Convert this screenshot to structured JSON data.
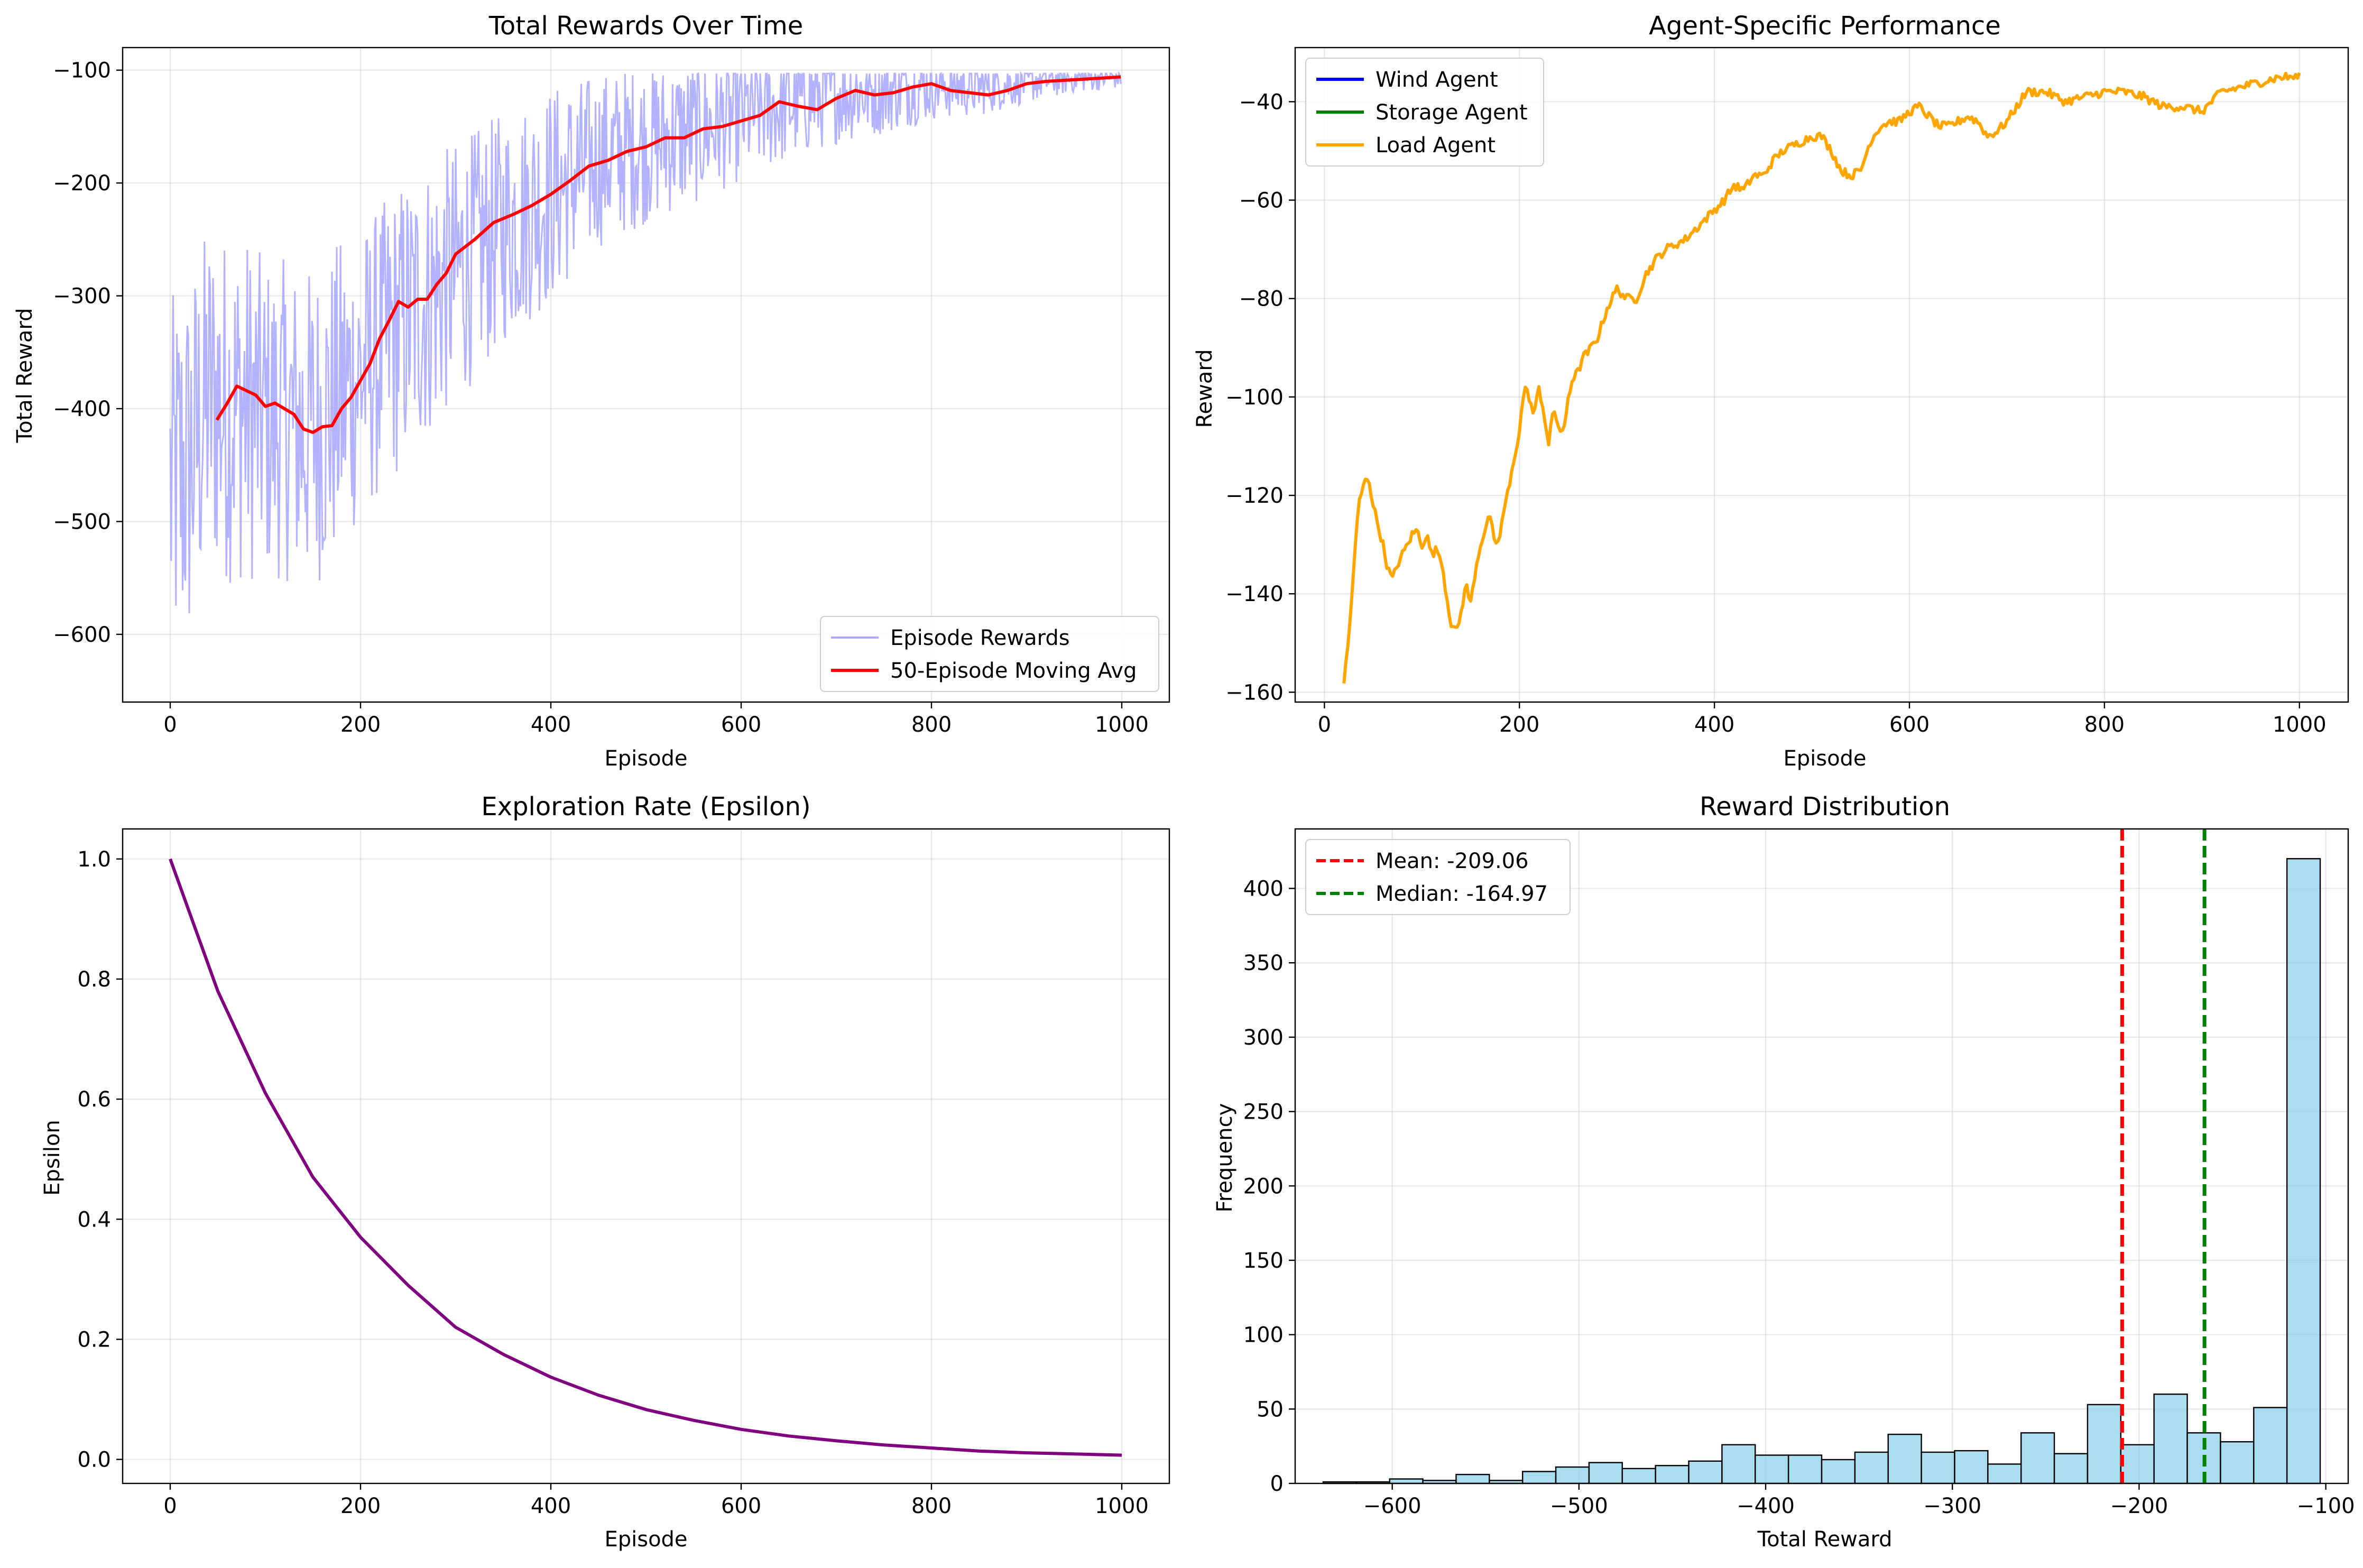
{
  "chart_data": [
    {
      "type": "line",
      "title": "Total Rewards Over Time",
      "xlabel": "Episode",
      "ylabel": "Total Reward",
      "xlim": [
        -50,
        1050
      ],
      "ylim": [
        -660,
        -80
      ],
      "xticks": [
        0,
        200,
        400,
        600,
        800,
        1000
      ],
      "yticks": [
        -600,
        -500,
        -400,
        -300,
        -200,
        -100
      ],
      "grid": true,
      "legend_position": "lower right",
      "series": [
        {
          "name": "Episode Rewards",
          "color": "#aaaaff",
          "style": "noisy",
          "x": [
            0,
            20,
            40,
            60,
            80,
            100,
            120,
            140,
            160,
            180,
            200,
            250,
            300,
            350,
            400,
            450,
            500,
            550,
            600,
            650,
            700,
            750,
            800,
            850,
            900,
            950,
            999
          ],
          "y": [
            -470,
            -450,
            -390,
            -400,
            -400,
            -410,
            -410,
            -420,
            -410,
            -390,
            -370,
            -320,
            -280,
            -240,
            -210,
            -180,
            -165,
            -155,
            -140,
            -130,
            -120,
            -118,
            -112,
            -115,
            -110,
            -107,
            -106
          ],
          "noise": [
            130,
            130,
            120,
            120,
            120,
            110,
            110,
            110,
            110,
            110,
            100,
            100,
            90,
            80,
            75,
            60,
            55,
            50,
            45,
            40,
            35,
            30,
            25,
            20,
            15,
            10,
            8
          ],
          "min": -637,
          "max": -103
        },
        {
          "name": "50-Episode Moving Avg",
          "color": "#ff0000",
          "x": [
            49,
            60,
            70,
            90,
            100,
            110,
            120,
            130,
            140,
            150,
            160,
            170,
            180,
            190,
            200,
            210,
            220,
            230,
            240,
            250,
            260,
            270,
            280,
            290,
            300,
            320,
            340,
            360,
            380,
            400,
            420,
            440,
            460,
            480,
            500,
            520,
            540,
            560,
            580,
            600,
            620,
            640,
            660,
            680,
            700,
            720,
            740,
            760,
            780,
            800,
            820,
            840,
            860,
            880,
            900,
            920,
            940,
            960,
            980,
            999
          ],
          "y": [
            -410,
            -395,
            -380,
            -388,
            -398,
            -395,
            -400,
            -405,
            -418,
            -421,
            -416,
            -415,
            -400,
            -390,
            -375,
            -360,
            -338,
            -322,
            -305,
            -310,
            -303,
            -303,
            -290,
            -280,
            -263,
            -250,
            -235,
            -228,
            -220,
            -210,
            -198,
            -185,
            -180,
            -172,
            -168,
            -160,
            -160,
            -152,
            -150,
            -145,
            -140,
            -128,
            -132,
            -135,
            -125,
            -118,
            -122,
            -120,
            -115,
            -112,
            -118,
            -120,
            -122,
            -118,
            -112,
            -110,
            -109,
            -108,
            -107,
            -106
          ]
        }
      ]
    },
    {
      "type": "line",
      "title": "Agent-Specific Performance",
      "xlabel": "Episode",
      "ylabel": "Reward",
      "xlim": [
        -30,
        1050
      ],
      "ylim": [
        -162,
        -29
      ],
      "xticks": [
        0,
        200,
        400,
        600,
        800,
        1000
      ],
      "yticks": [
        -160,
        -140,
        -120,
        -100,
        -80,
        -60,
        -40
      ],
      "grid": true,
      "legend_position": "upper left",
      "series": [
        {
          "name": "Wind Agent",
          "color": "#0000ff",
          "x": [],
          "y": []
        },
        {
          "name": "Storage Agent",
          "color": "#008000",
          "x": [],
          "y": []
        },
        {
          "name": "Load Agent",
          "color": "#ffa500",
          "x": [
            20,
            25,
            30,
            35,
            40,
            45,
            50,
            55,
            60,
            65,
            70,
            75,
            80,
            85,
            90,
            95,
            100,
            105,
            110,
            115,
            120,
            125,
            130,
            135,
            140,
            145,
            150,
            155,
            160,
            165,
            170,
            175,
            180,
            185,
            190,
            195,
            200,
            205,
            210,
            215,
            220,
            225,
            230,
            235,
            240,
            245,
            250,
            255,
            260,
            265,
            270,
            280,
            290,
            300,
            310,
            320,
            330,
            340,
            350,
            360,
            370,
            380,
            390,
            400,
            410,
            420,
            430,
            440,
            450,
            460,
            470,
            480,
            490,
            500,
            510,
            520,
            530,
            540,
            550,
            560,
            570,
            580,
            590,
            600,
            610,
            620,
            630,
            640,
            650,
            660,
            670,
            680,
            690,
            700,
            720,
            740,
            760,
            780,
            800,
            820,
            840,
            860,
            880,
            900,
            920,
            940,
            960,
            980,
            1000
          ],
          "y": [
            -158,
            -149,
            -135,
            -122,
            -118,
            -116,
            -122,
            -126,
            -130,
            -135,
            -137,
            -134,
            -132,
            -130,
            -128,
            -127,
            -130,
            -128,
            -132,
            -131,
            -133,
            -140,
            -146,
            -148,
            -144,
            -138,
            -142,
            -135,
            -130,
            -127,
            -124,
            -131,
            -128,
            -122,
            -118,
            -112,
            -107,
            -98,
            -100,
            -104,
            -98,
            -103,
            -110,
            -102,
            -106,
            -108,
            -100,
            -96,
            -95,
            -92,
            -91,
            -88,
            -82,
            -78,
            -80,
            -80,
            -75,
            -72,
            -70,
            -69,
            -68,
            -66,
            -64,
            -62,
            -60,
            -57,
            -58,
            -55,
            -55,
            -52,
            -50,
            -49,
            -48,
            -47,
            -47,
            -50,
            -54,
            -55,
            -54,
            -48,
            -45,
            -44,
            -44,
            -42,
            -41,
            -43,
            -45,
            -45,
            -44,
            -43,
            -44,
            -47,
            -46,
            -44,
            -38,
            -38,
            -40,
            -39,
            -38,
            -38,
            -39,
            -41,
            -41,
            -42,
            -38,
            -37,
            -36,
            -35,
            -35
          ]
        }
      ]
    },
    {
      "type": "line",
      "title": "Exploration Rate (Epsilon)",
      "xlabel": "Episode",
      "ylabel": "Epsilon",
      "xlim": [
        -50,
        1050
      ],
      "ylim": [
        -0.04,
        1.05
      ],
      "xticks": [
        0,
        200,
        400,
        600,
        800,
        1000
      ],
      "yticks": [
        0.0,
        0.2,
        0.4,
        0.6,
        0.8,
        1.0
      ],
      "grid": true,
      "series": [
        {
          "color": "#800080",
          "x": [
            0,
            50,
            100,
            150,
            200,
            250,
            300,
            350,
            400,
            450,
            500,
            550,
            600,
            650,
            700,
            750,
            800,
            850,
            900,
            950,
            1000
          ],
          "y": [
            1.0,
            0.78,
            0.61,
            0.47,
            0.37,
            0.29,
            0.22,
            0.175,
            0.137,
            0.107,
            0.083,
            0.065,
            0.05,
            0.039,
            0.031,
            0.024,
            0.019,
            0.014,
            0.011,
            0.009,
            0.007
          ]
        }
      ]
    },
    {
      "type": "bar",
      "subtype": "histogram",
      "title": "Reward Distribution",
      "xlabel": "Total Reward",
      "ylabel": "Frequency",
      "xlim": [
        -652,
        -88
      ],
      "ylim": [
        0,
        440
      ],
      "xticks": [
        -600,
        -500,
        -400,
        -300,
        -200,
        -100
      ],
      "yticks": [
        0,
        50,
        100,
        150,
        200,
        250,
        300,
        350,
        400
      ],
      "grid": true,
      "legend_position": "upper left",
      "bar_color": "#87ceeb",
      "bin_start": -637,
      "bin_width": 17.8,
      "values": [
        1,
        1,
        3,
        2,
        6,
        2,
        8,
        11,
        14,
        10,
        12,
        15,
        26,
        19,
        19,
        16,
        21,
        33,
        21,
        22,
        13,
        34,
        20,
        53,
        26,
        60,
        34,
        28,
        51,
        420
      ],
      "annotations": [
        {
          "label": "Mean: -209.06",
          "x": -209.06,
          "color": "#ff0000"
        },
        {
          "label": "Median: -164.97",
          "x": -164.97,
          "color": "#008000"
        }
      ]
    }
  ]
}
